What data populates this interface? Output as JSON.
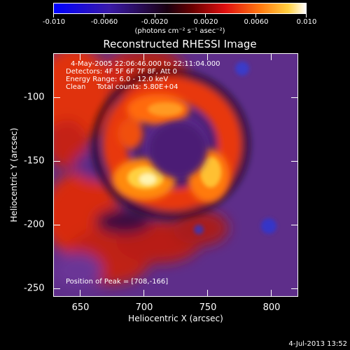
{
  "colorbar": {
    "tick_labels": [
      "-0.010",
      "-0.0060",
      "-0.0020",
      "0.0020",
      "0.0060",
      "0.010"
    ],
    "units": "(photons cm⁻² s⁻¹ asec⁻²)",
    "range": [
      -0.01,
      0.01
    ]
  },
  "title": "Reconstructed RHESSI Image",
  "info": {
    "time": "4-May-2005 22:06:46.000 to 22:11:04.000",
    "detectors": "Detectors: 4F 5F 6F 7F 8F, Att 0",
    "energy": "Energy Range: 6.0 - 12.0 keV",
    "clean": "Clean     Total counts: 5.80E+04",
    "peak": "Position of Peak = [708,-166]"
  },
  "axes": {
    "xlabel": "Heliocentric X (arcsec)",
    "ylabel": "Heliocentric Y (arcsec)",
    "x_ticks": [
      "650",
      "700",
      "750",
      "800"
    ],
    "y_ticks": [
      "-100",
      "-150",
      "-200",
      "-250"
    ],
    "xlim": [
      630,
      822
    ],
    "ylim": [
      -262,
      -70
    ]
  },
  "footer": "4-Jul-2013 13:52"
}
